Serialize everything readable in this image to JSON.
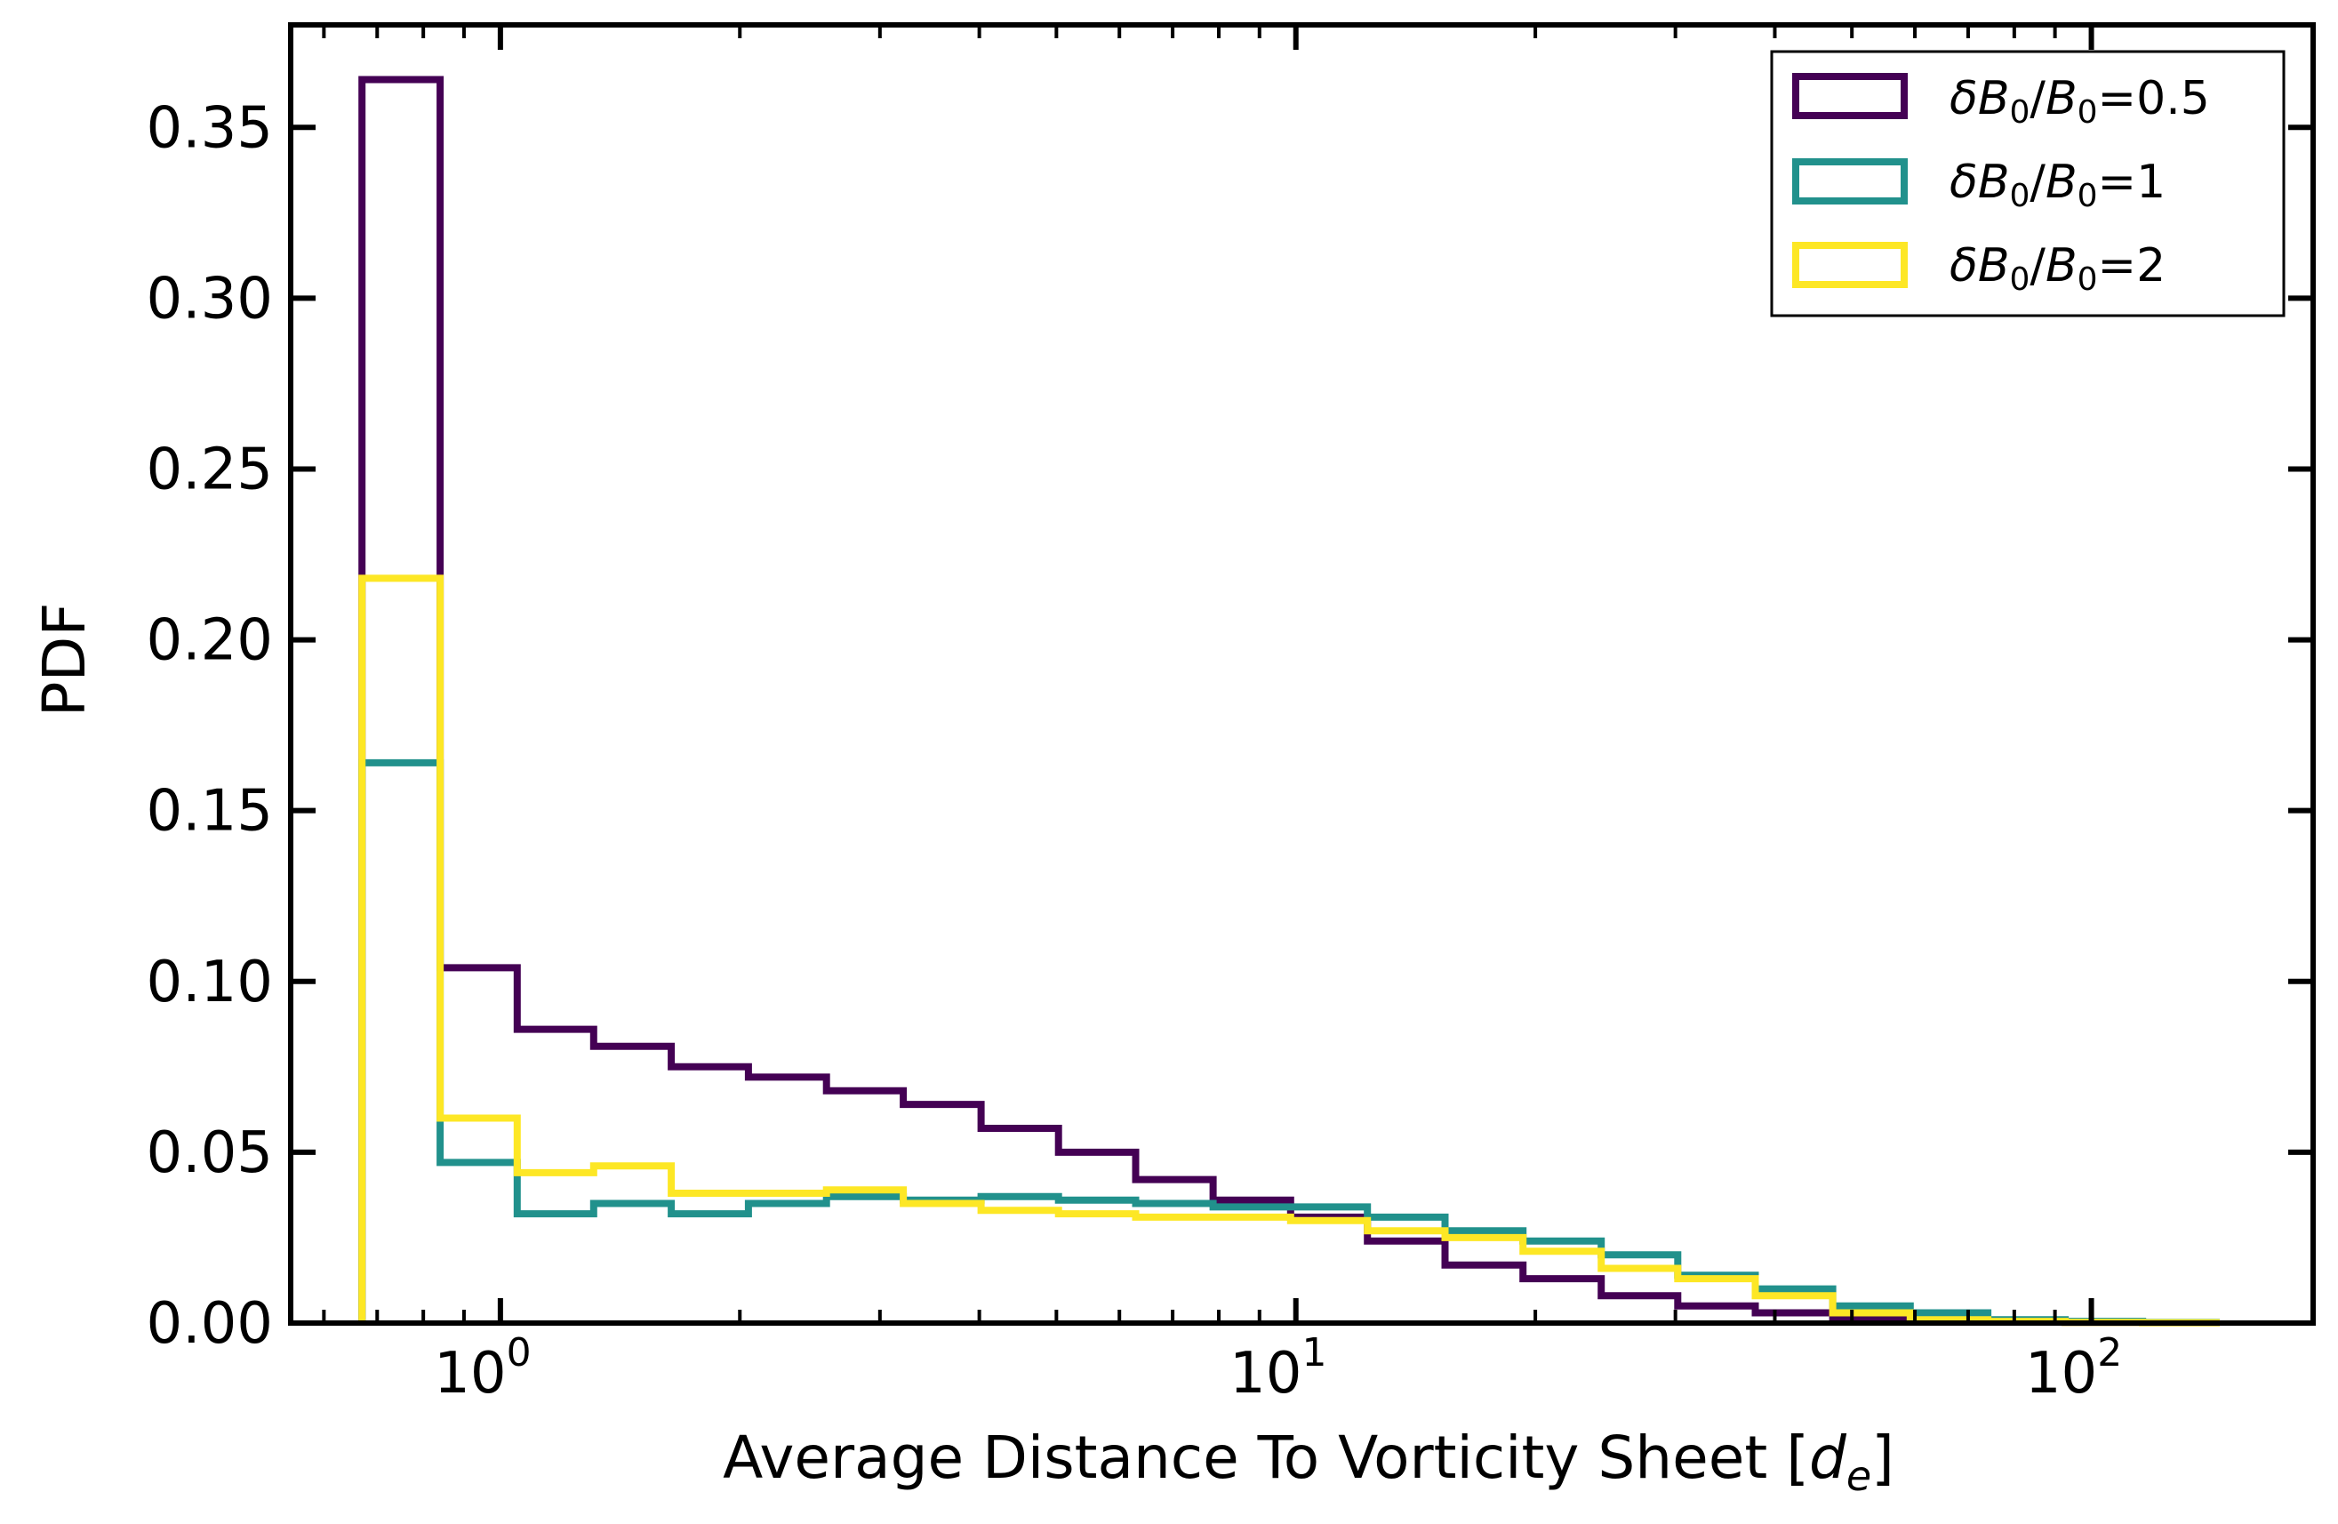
{
  "chart_data": {
    "type": "histogram-step",
    "xscale": "log",
    "xlabel": "Average Distance To Vorticity Sheet [",
    "xlabel_symbol": "d",
    "xlabel_sub": "e",
    "xlabel_close": "]",
    "ylabel": "PDF",
    "xlim": [
      0.545,
      190
    ],
    "ylim": [
      0,
      0.38
    ],
    "yticks": [
      0.0,
      0.05,
      0.1,
      0.15,
      0.2,
      0.25,
      0.3,
      0.35
    ],
    "ytick_labels": [
      "0.00",
      "0.05",
      "0.10",
      "0.15",
      "0.20",
      "0.25",
      "0.30",
      "0.35"
    ],
    "xticks": [
      1,
      10,
      100
    ],
    "xtick_labels": [
      {
        "base": "10",
        "exp": "0"
      },
      {
        "base": "10",
        "exp": "1"
      },
      {
        "base": "10",
        "exp": "2"
      }
    ],
    "legend_placement": "top-right",
    "bin_edges": [
      0.67,
      0.84,
      1.05,
      1.31,
      1.64,
      2.05,
      2.57,
      3.21,
      4.02,
      5.03,
      6.29,
      7.87,
      9.85,
      12.3,
      15.4,
      19.3,
      24.2,
      30.2,
      37.8,
      47.3,
      59.2,
      74.1,
      92.7,
      116,
      145
    ],
    "series": [
      {
        "name": "δB0/B0=0.5",
        "legend": {
          "pre": "δ",
          "b1": "B",
          "s1": "0",
          "slash": "/",
          "b2": "B",
          "s2": "0",
          "eq": "=0.5"
        },
        "color": "#440154",
        "values": [
          0.364,
          0.104,
          0.086,
          0.081,
          0.075,
          0.072,
          0.068,
          0.064,
          0.057,
          0.05,
          0.042,
          0.036,
          0.031,
          0.024,
          0.017,
          0.013,
          0.008,
          0.005,
          0.003,
          0.0015,
          0.0008,
          0.0004,
          0.0002,
          0.0001
        ]
      },
      {
        "name": "δB0/B0=1",
        "legend": {
          "pre": "δ",
          "b1": "B",
          "s1": "0",
          "slash": "/",
          "b2": "B",
          "s2": "0",
          "eq": "=1"
        },
        "color": "#21918c",
        "values": [
          0.164,
          0.047,
          0.032,
          0.035,
          0.032,
          0.035,
          0.037,
          0.036,
          0.037,
          0.036,
          0.035,
          0.034,
          0.034,
          0.031,
          0.027,
          0.024,
          0.02,
          0.014,
          0.01,
          0.005,
          0.003,
          0.001,
          0.0005,
          0.0002
        ]
      },
      {
        "name": "δB0/B0=2",
        "legend": {
          "pre": "δ",
          "b1": "B",
          "s1": "0",
          "slash": "/",
          "b2": "B",
          "s2": "0",
          "eq": "=2"
        },
        "color": "#fde725",
        "values": [
          0.218,
          0.06,
          0.044,
          0.046,
          0.038,
          0.038,
          0.039,
          0.035,
          0.033,
          0.032,
          0.031,
          0.031,
          0.03,
          0.027,
          0.025,
          0.021,
          0.016,
          0.013,
          0.008,
          0.003,
          0.001,
          0.0005,
          0.0002,
          0.0001
        ]
      }
    ]
  }
}
